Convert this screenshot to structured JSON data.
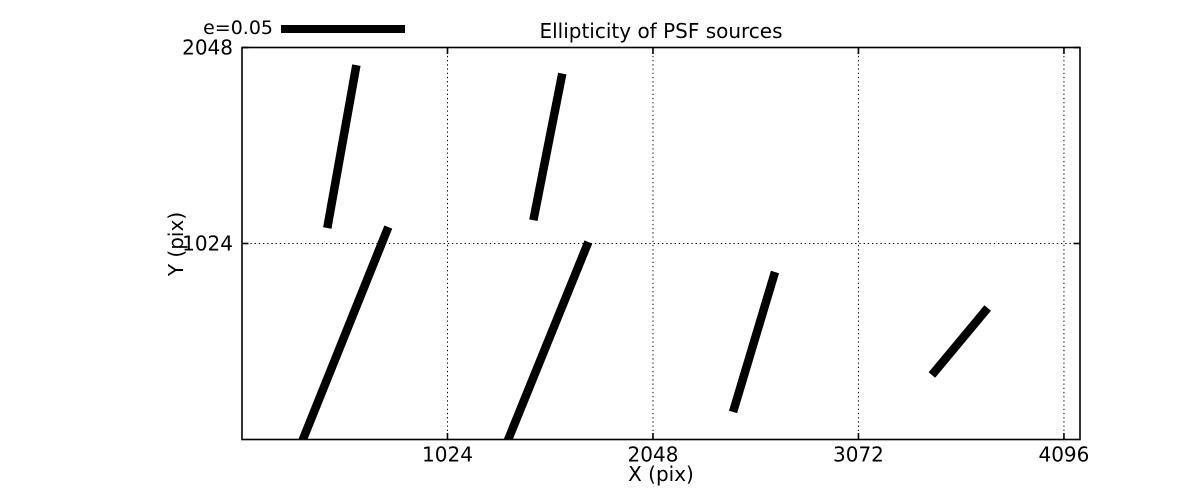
{
  "figure": {
    "title": "Ellipticity of PSF sources",
    "xlabel": "X (pix)",
    "ylabel": "Y (pix)",
    "background_color": "#ffffff",
    "line_color": "#000000"
  },
  "legend": {
    "label": "e=0.05",
    "ellipticity_scale": 0.05
  },
  "chart_data": {
    "type": "line",
    "title": "Ellipticity of PSF sources",
    "xlabel": "X (pix)",
    "ylabel": "Y (pix)",
    "xlim": [
      0,
      4176
    ],
    "ylim": [
      0,
      2048
    ],
    "xticks": [
      1024,
      2048,
      3072,
      4096
    ],
    "yticks": [
      1024,
      2048
    ],
    "grid": true,
    "grid_style": "dotted",
    "legend_entry": "e=0.05",
    "legend_position": "upper left, above axes",
    "segments_note": "thick black ellipticity whisker segments, data coords in pixels; negative y = clipped at bottom axis",
    "segments": [
      {
        "x1": 570,
        "y1": 1956,
        "x2": 425,
        "y2": 1105,
        "clipped": false
      },
      {
        "x1": 1596,
        "y1": 1912,
        "x2": 1452,
        "y2": 1146,
        "clipped": false
      },
      {
        "x1": 729,
        "y1": 1110,
        "x2": 288,
        "y2": -40,
        "clipped": true
      },
      {
        "x1": 1726,
        "y1": 1032,
        "x2": 1311,
        "y2": -40,
        "clipped": true
      },
      {
        "x1": 2656,
        "y1": 875,
        "x2": 2447,
        "y2": 144,
        "clipped": false
      },
      {
        "x1": 3438,
        "y1": 337,
        "x2": 3716,
        "y2": 687,
        "clipped": false
      }
    ]
  }
}
